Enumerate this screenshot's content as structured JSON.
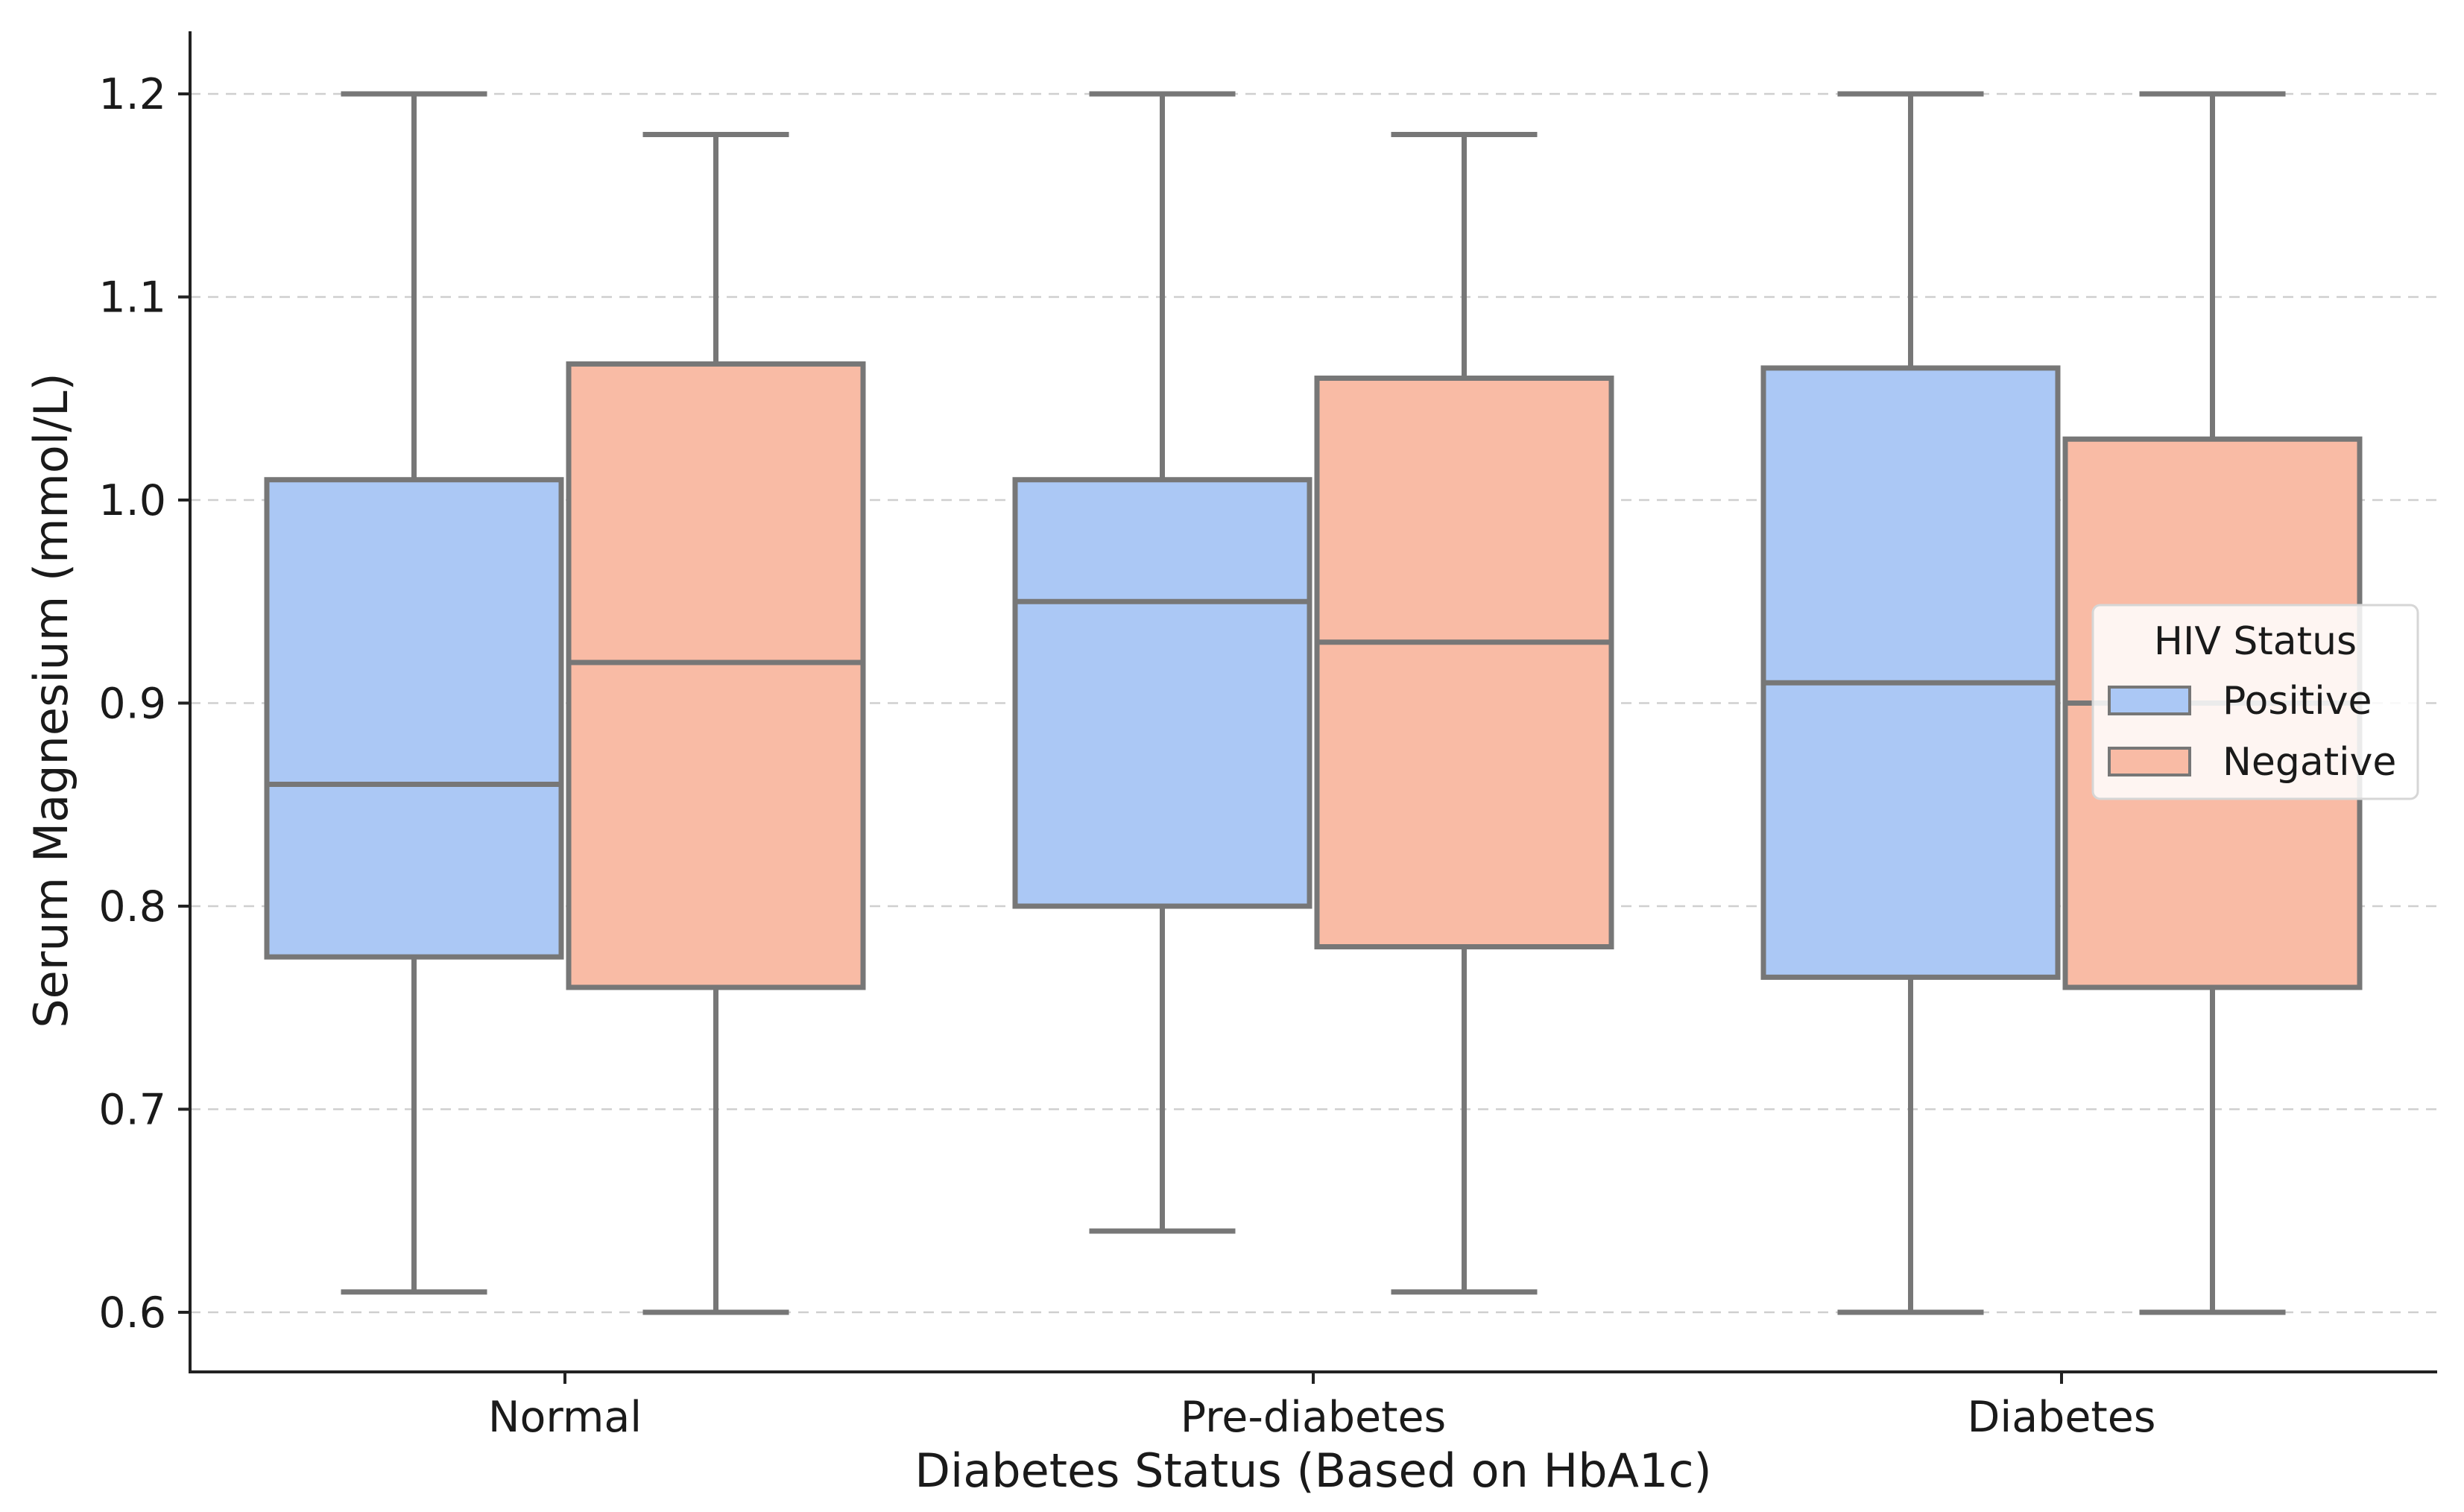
{
  "chart_data": {
    "type": "box",
    "title": "",
    "xlabel": "Diabetes Status (Based on HbA1c)",
    "ylabel": "Serum Magnesium (mmol/L)",
    "categories": [
      "Normal",
      "Pre-diabetes",
      "Diabetes"
    ],
    "ylim": [
      0.57,
      1.23
    ],
    "yticks": [
      0.6,
      0.7,
      0.8,
      0.9,
      1.0,
      1.1,
      1.2
    ],
    "ytick_labels": [
      "0.6",
      "0.7",
      "0.8",
      "0.9",
      "1.0",
      "1.1",
      "1.2"
    ],
    "grid": true,
    "legend": {
      "title": "HIV Status",
      "position": "center-right"
    },
    "series": [
      {
        "name": "Positive",
        "color": "#abc8f5",
        "boxes": [
          {
            "min": 0.61,
            "q1": 0.775,
            "median": 0.86,
            "q3": 1.01,
            "max": 1.2
          },
          {
            "min": 0.64,
            "q1": 0.8,
            "median": 0.95,
            "q3": 1.01,
            "max": 1.2
          },
          {
            "min": 0.6,
            "q1": 0.765,
            "median": 0.91,
            "q3": 1.065,
            "max": 1.2
          }
        ]
      },
      {
        "name": "Negative",
        "color": "#f9bba5",
        "boxes": [
          {
            "min": 0.6,
            "q1": 0.76,
            "median": 0.92,
            "q3": 1.067,
            "max": 1.18
          },
          {
            "min": 0.61,
            "q1": 0.78,
            "median": 0.93,
            "q3": 1.06,
            "max": 1.18
          },
          {
            "min": 0.6,
            "q1": 0.76,
            "median": 0.9,
            "q3": 1.03,
            "max": 1.2
          }
        ]
      }
    ]
  }
}
